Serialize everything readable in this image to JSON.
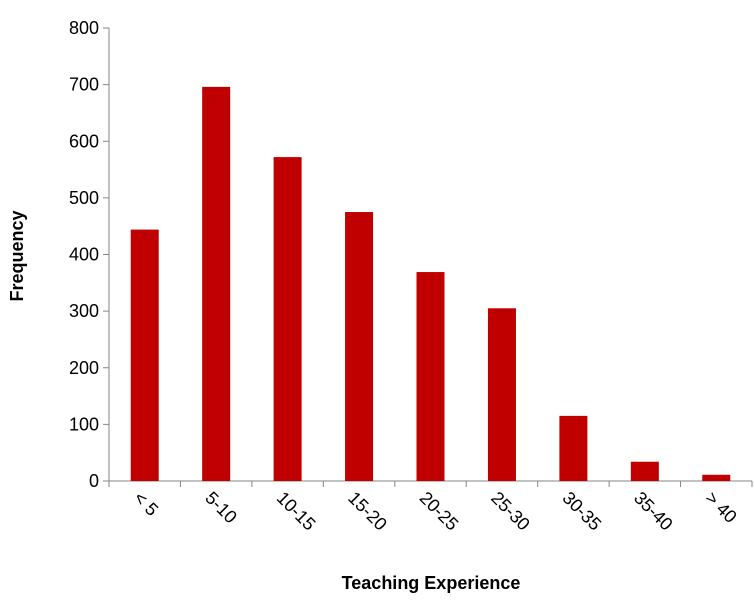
{
  "chart_data": {
    "type": "bar",
    "title": "",
    "xlabel": "Teaching Experience",
    "ylabel": "Frequency",
    "categories": [
      "< 5",
      "5-10",
      "10-15",
      "15-20",
      "20-25",
      "25-30",
      "30-35",
      "35-40",
      "> 40"
    ],
    "values": [
      444,
      696,
      572,
      475,
      369,
      305,
      115,
      34,
      11
    ],
    "ylim": [
      0,
      800
    ],
    "yticks": [
      0,
      100,
      200,
      300,
      400,
      500,
      600,
      700,
      800
    ],
    "grid": false,
    "legend": "none",
    "bar_color": "#c00000",
    "axis_color": "#868686"
  }
}
